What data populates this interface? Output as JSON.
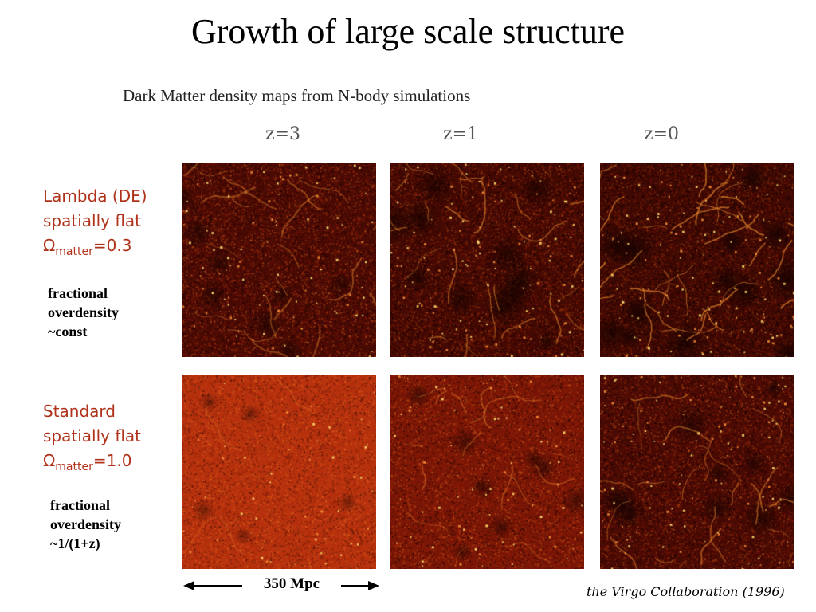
{
  "title": "Growth of large scale structure",
  "subtitle": "Dark Matter density maps from N-body simulations",
  "redshifts": [
    "z=3",
    "z=1",
    "z=0"
  ],
  "models": [
    {
      "line1": "Lambda (DE)",
      "line2": "spatially flat",
      "omega_symbol": "Ω",
      "omega_sub": "matter",
      "omega_value": "=0.3",
      "note": [
        "fractional",
        "overdensity",
        "~const"
      ]
    },
    {
      "line1": "Standard",
      "line2": "spatially flat",
      "omega_symbol": "Ω",
      "omega_sub": "matter",
      "omega_value": "=1.0",
      "note": [
        "fractional",
        "overdensity",
        "~1/(1+z)"
      ]
    }
  ],
  "scale_bar": "350 Mpc",
  "credit": "the Virgo Collaboration (1996)",
  "colors": {
    "model_text": "#b0321a",
    "map_dark": "#3a0602",
    "map_mid": "#a8240a",
    "map_bright": "#ffd060"
  },
  "panels": [
    {
      "row": 0,
      "col": 0,
      "base": "#4a0a04",
      "structure": 0.45
    },
    {
      "row": 0,
      "col": 1,
      "base": "#440903",
      "structure": 0.65
    },
    {
      "row": 0,
      "col": 2,
      "base": "#3e0803",
      "structure": 0.85
    },
    {
      "row": 1,
      "col": 0,
      "base": "#b8320e",
      "structure": 0.1
    },
    {
      "row": 1,
      "col": 1,
      "base": "#7a1606",
      "structure": 0.35
    },
    {
      "row": 1,
      "col": 2,
      "base": "#4a0a04",
      "structure": 0.6
    }
  ]
}
